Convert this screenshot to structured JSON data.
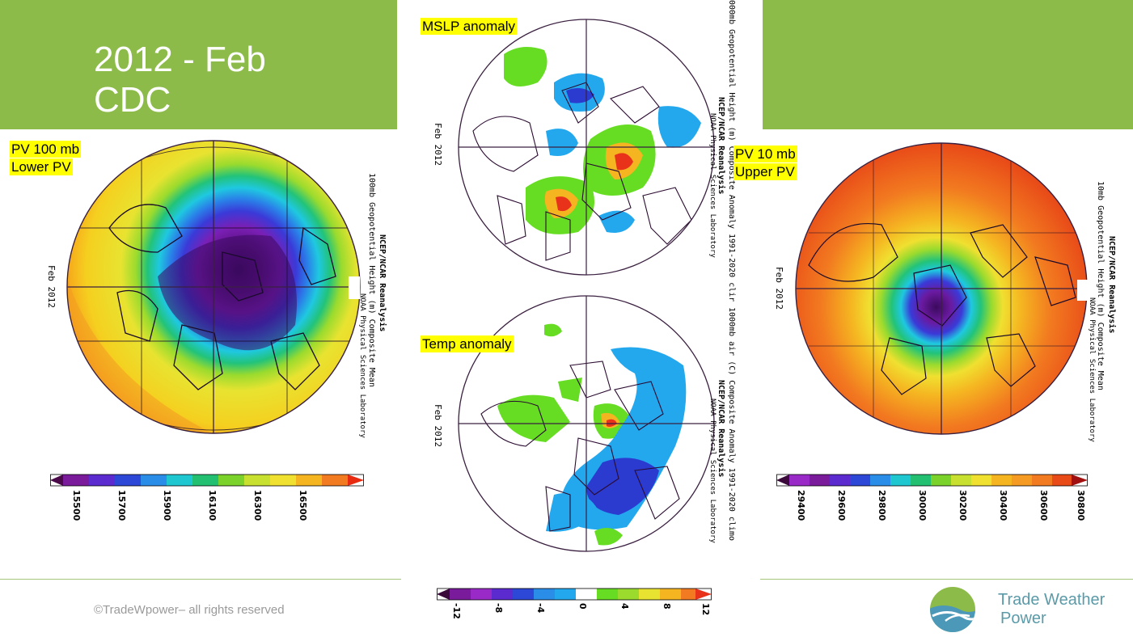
{
  "slide": {
    "title_line1": "2012 - Feb",
    "title_line2": "CDC"
  },
  "labels": {
    "pv100_line1": "PV 100 mb",
    "pv100_line2": "Lower PV",
    "pv10_line1": "PV 10 mb",
    "pv10_line2": "Upper PV",
    "mslp": "MSLP anomaly",
    "temp": "Temp anomaly"
  },
  "maps": {
    "left": {
      "date": "Feb  2012",
      "source": "NCEP/NCAR Reanalysis",
      "variable": "100mb  Geopotential  Height  (m)  Composite  Mean",
      "lab": "NOAA  Physical  Sciences  Laboratory",
      "colorbar_ticks": [
        "15500",
        "15700",
        "15900",
        "16100",
        "16300",
        "16500"
      ]
    },
    "right": {
      "date": "Feb  2012",
      "source": "NCEP/NCAR  Reanalysis",
      "variable": "10mb  Geopotential  Height  (m)  Composite  Mean",
      "lab": "NOAA  Physical  Sciences  Laboratory",
      "colorbar_ticks": [
        "29400",
        "29600",
        "29800",
        "30000",
        "30200",
        "30400",
        "30600",
        "30800"
      ]
    },
    "top": {
      "date": "Feb  2012",
      "variable": "000mb  Geopotential  Height  (m)  Composite  Anomaly  1991-2020  clir",
      "source": "NCEP/NCAR  Reanalysis",
      "lab": "NOAA  Physical  Sciences  Laboratory"
    },
    "bottom": {
      "date": "Feb  2012",
      "variable": "1000mb  air  (C)  Composite  Anomaly  1991-2020  climo",
      "source": "NCEP/NCAR  Reanalysis",
      "lab": "NOAA  Physical  Sciences  Laboratory",
      "colorbar_ticks": [
        "-12",
        "-8",
        "-4",
        "0",
        "4",
        "8",
        "12"
      ]
    }
  },
  "footer": {
    "copyright": "©TradeWpower– all rights reserved",
    "brand_line1": "Trade Weather",
    "brand_line2": "Power"
  },
  "colors": {
    "green_band": "#8dbb49",
    "brand_teal": "#5b9aa8"
  }
}
